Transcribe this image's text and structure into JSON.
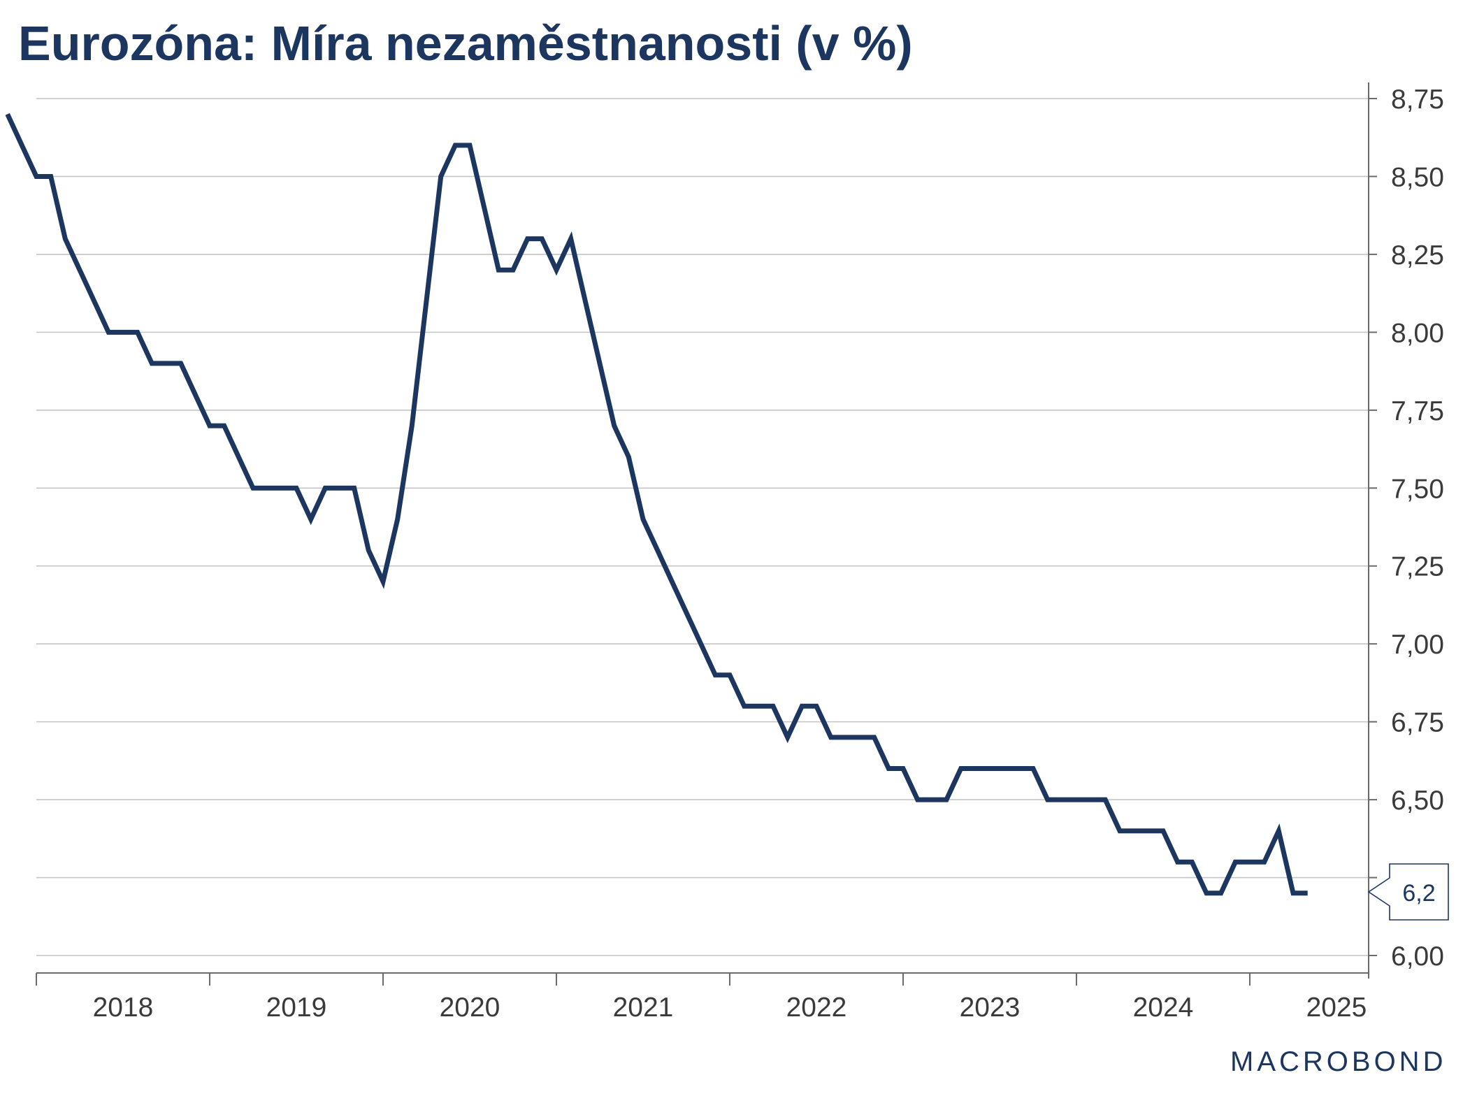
{
  "title": "Eurozóna: Míra nezaměstnanosti (v %)",
  "logo": "MACROBOND",
  "colors": {
    "series": "#1c3660",
    "grid": "#c4c4c4",
    "text": "#3a3a3a"
  },
  "chart_data": {
    "type": "line",
    "title": "Eurozóna: Míra nezaměstnanosti (v %)",
    "xlabel": "",
    "ylabel": "",
    "ylim": [
      6.0,
      8.85
    ],
    "yticks": [
      6.0,
      6.25,
      6.5,
      6.75,
      7.0,
      7.25,
      7.5,
      7.75,
      8.0,
      8.25,
      8.5,
      8.75
    ],
    "ytick_labels": [
      "6,00",
      "",
      "6,50",
      "6,75",
      "7,00",
      "7,25",
      "7,50",
      "7,75",
      "8,00",
      "8,25",
      "8,50",
      "8,75"
    ],
    "x_years": [
      "2018",
      "2019",
      "2020",
      "2021",
      "2022",
      "2023",
      "2024",
      "2025"
    ],
    "yaxis_position": "right",
    "grid": true,
    "last_value_label": "6,2",
    "series": [
      {
        "x": [
          "2017-11",
          "2017-12",
          "2018-01",
          "2018-02",
          "2018-03",
          "2018-04",
          "2018-05",
          "2018-06",
          "2018-07",
          "2018-08",
          "2018-09",
          "2018-10",
          "2018-11",
          "2018-12",
          "2019-01",
          "2019-02",
          "2019-03",
          "2019-04",
          "2019-05",
          "2019-06",
          "2019-07",
          "2019-08",
          "2019-09",
          "2019-10",
          "2019-11",
          "2019-12",
          "2020-01",
          "2020-02",
          "2020-03",
          "2020-04",
          "2020-05",
          "2020-06",
          "2020-07",
          "2020-08",
          "2020-09",
          "2020-10",
          "2020-11",
          "2020-12",
          "2021-01",
          "2021-02",
          "2021-03",
          "2021-04",
          "2021-05",
          "2021-06",
          "2021-07",
          "2021-08",
          "2021-09",
          "2021-10",
          "2021-11",
          "2021-12",
          "2022-01",
          "2022-02",
          "2022-03",
          "2022-04",
          "2022-05",
          "2022-06",
          "2022-07",
          "2022-08",
          "2022-09",
          "2022-10",
          "2022-11",
          "2022-12",
          "2023-01",
          "2023-02",
          "2023-03",
          "2023-04",
          "2023-05",
          "2023-06",
          "2023-07",
          "2023-08",
          "2023-09",
          "2023-10",
          "2023-11",
          "2023-12",
          "2024-01",
          "2024-02",
          "2024-03",
          "2024-04",
          "2024-05",
          "2024-06",
          "2024-07",
          "2024-08",
          "2024-09",
          "2024-10",
          "2024-11",
          "2024-12",
          "2025-01",
          "2025-02",
          "2025-03",
          "2025-04",
          "2025-05"
        ],
        "values": [
          8.7,
          8.6,
          8.5,
          8.5,
          8.3,
          8.2,
          8.1,
          8.0,
          8.0,
          8.0,
          7.9,
          7.9,
          7.9,
          7.8,
          7.7,
          7.7,
          7.6,
          7.5,
          7.5,
          7.5,
          7.5,
          7.4,
          7.5,
          7.5,
          7.5,
          7.3,
          7.2,
          7.4,
          7.7,
          8.1,
          8.5,
          8.6,
          8.6,
          8.4,
          8.2,
          8.2,
          8.3,
          8.3,
          8.2,
          8.3,
          8.1,
          7.9,
          7.7,
          7.6,
          7.4,
          7.3,
          7.2,
          7.1,
          7.0,
          6.9,
          6.9,
          6.8,
          6.8,
          6.8,
          6.7,
          6.8,
          6.8,
          6.7,
          6.7,
          6.7,
          6.7,
          6.6,
          6.6,
          6.5,
          6.5,
          6.5,
          6.6,
          6.6,
          6.6,
          6.6,
          6.6,
          6.6,
          6.5,
          6.5,
          6.5,
          6.5,
          6.5,
          6.4,
          6.4,
          6.4,
          6.4,
          6.3,
          6.3,
          6.2,
          6.2,
          6.3,
          6.3,
          6.3,
          6.4,
          6.2,
          6.2
        ]
      }
    ]
  }
}
